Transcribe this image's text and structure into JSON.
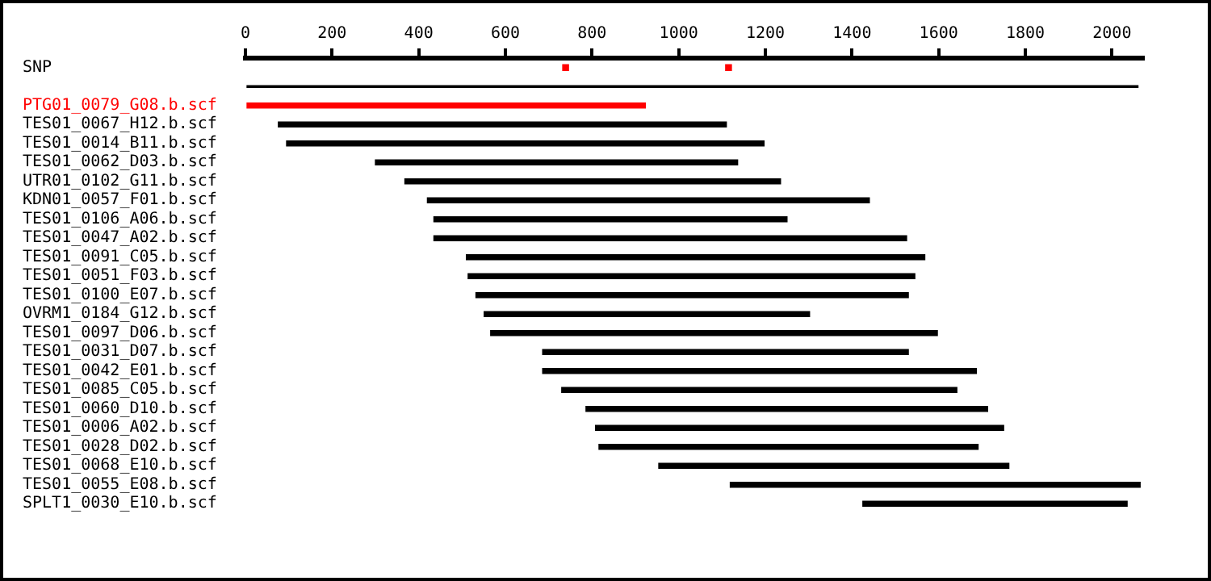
{
  "chart_data": {
    "type": "bar",
    "orientation": "horizontal",
    "grid": false,
    "legend": false,
    "categories": [
      "SNP",
      null,
      "PTG01_0079_G08.b.scf",
      "TES01_0067_H12.b.scf",
      "TES01_0014_B11.b.scf",
      "TES01_0062_D03.b.scf",
      "UTR01_0102_G11.b.scf",
      "KDN01_0057_F01.b.scf",
      "TES01_0106_A06.b.scf",
      "TES01_0047_A02.b.scf",
      "TES01_0091_C05.b.scf",
      "TES01_0051_F03.b.scf",
      "TES01_0100_E07.b.scf",
      "OVRM1_0184_G12.b.scf",
      "TES01_0097_D06.b.scf",
      "TES01_0031_D07.b.scf",
      "TES01_0042_E01.b.scf",
      "TES01_0085_C05.b.scf",
      "TES01_0060_D10.b.scf",
      "TES01_0006_A02.b.scf",
      "TES01_0028_D02.b.scf",
      "TES01_0068_E10.b.scf",
      "TES01_0055_E08.b.scf",
      "SPLT1_0030_E10.b.scf"
    ],
    "xlim": [
      0,
      2072
    ],
    "xticks": [
      0,
      200,
      400,
      600,
      800,
      1000,
      1200,
      1400,
      1600,
      1800,
      2000
    ],
    "series": [
      {
        "color": "#000000",
        "base": [
          null,
          0,
          null,
          null,
          null,
          null,
          null,
          null,
          null,
          null,
          null,
          null,
          null,
          null,
          null,
          null,
          null,
          null,
          null,
          null,
          null,
          null,
          null,
          null
        ],
        "values": [
          null,
          2060,
          null,
          null,
          null,
          null,
          null,
          null,
          null,
          null,
          null,
          null,
          null,
          null,
          null,
          null,
          null,
          null,
          null,
          null,
          null,
          null,
          null,
          null
        ]
      },
      {
        "colors": [
          null,
          null,
          "#ff0000",
          "#000000",
          "#000000",
          "#000000",
          "#000000",
          "#000000",
          "#000000",
          "#000000",
          "#000000",
          "#000000",
          "#000000",
          "#000000",
          "#000000",
          "#000000",
          "#000000",
          "#000000",
          "#000000",
          "#000000",
          "#000000",
          "#000000",
          "#000000",
          "#000000"
        ],
        "base": [
          null,
          null,
          0,
          76,
          95,
          300,
          368,
          420,
          435,
          435,
          510,
          514,
          532,
          551,
          566,
          686,
          686,
          730,
          786,
          808,
          816,
          954,
          1119,
          1425
        ],
        "values": [
          null,
          null,
          923,
          1034,
          1102,
          836,
          867,
          1020,
          815,
          1091,
          1058,
          1031,
          998,
          751,
          1031,
          844,
          1001,
          912,
          927,
          942,
          875,
          808,
          946,
          610
        ]
      },
      {
        "type": "scatter",
        "x": [
          "SNP",
          "SNP"
        ],
        "values": [
          739,
          1115
        ],
        "color": "#ff0000",
        "marker": "square"
      }
    ]
  }
}
